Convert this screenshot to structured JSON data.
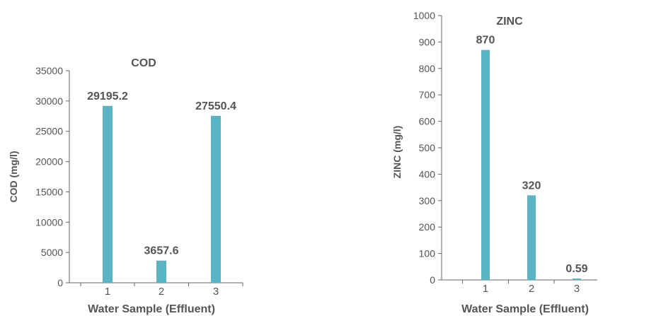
{
  "chart_data": [
    {
      "type": "bar",
      "title": "COD",
      "xlabel": "Water Sample (Effluent)",
      "ylabel": "COD (mg/l)",
      "categories": [
        "1",
        "2",
        "3"
      ],
      "values": [
        29195.2,
        3657.6,
        27550.4
      ],
      "data_labels": [
        "29195.2",
        "3657.6",
        "27550.4"
      ],
      "ylim": [
        0,
        35000
      ],
      "yticks": [
        "0",
        "5000",
        "10000",
        "15000",
        "20000",
        "25000",
        "30000",
        "35000"
      ],
      "grid": false,
      "bar_color": "#59b4c3"
    },
    {
      "type": "bar",
      "title": "ZINC",
      "xlabel": "Water Sample (Effluent)",
      "ylabel": "ZINC (mg/l)",
      "categories": [
        "1",
        "2",
        "3"
      ],
      "values": [
        870,
        320,
        0.59
      ],
      "data_labels": [
        "870",
        "320",
        "0.59"
      ],
      "ylim": [
        0,
        1000
      ],
      "yticks": [
        "0",
        "100",
        "200",
        "300",
        "400",
        "500",
        "600",
        "700",
        "800",
        "900",
        "1000"
      ],
      "grid": false,
      "bar_color": "#59b4c3"
    }
  ]
}
